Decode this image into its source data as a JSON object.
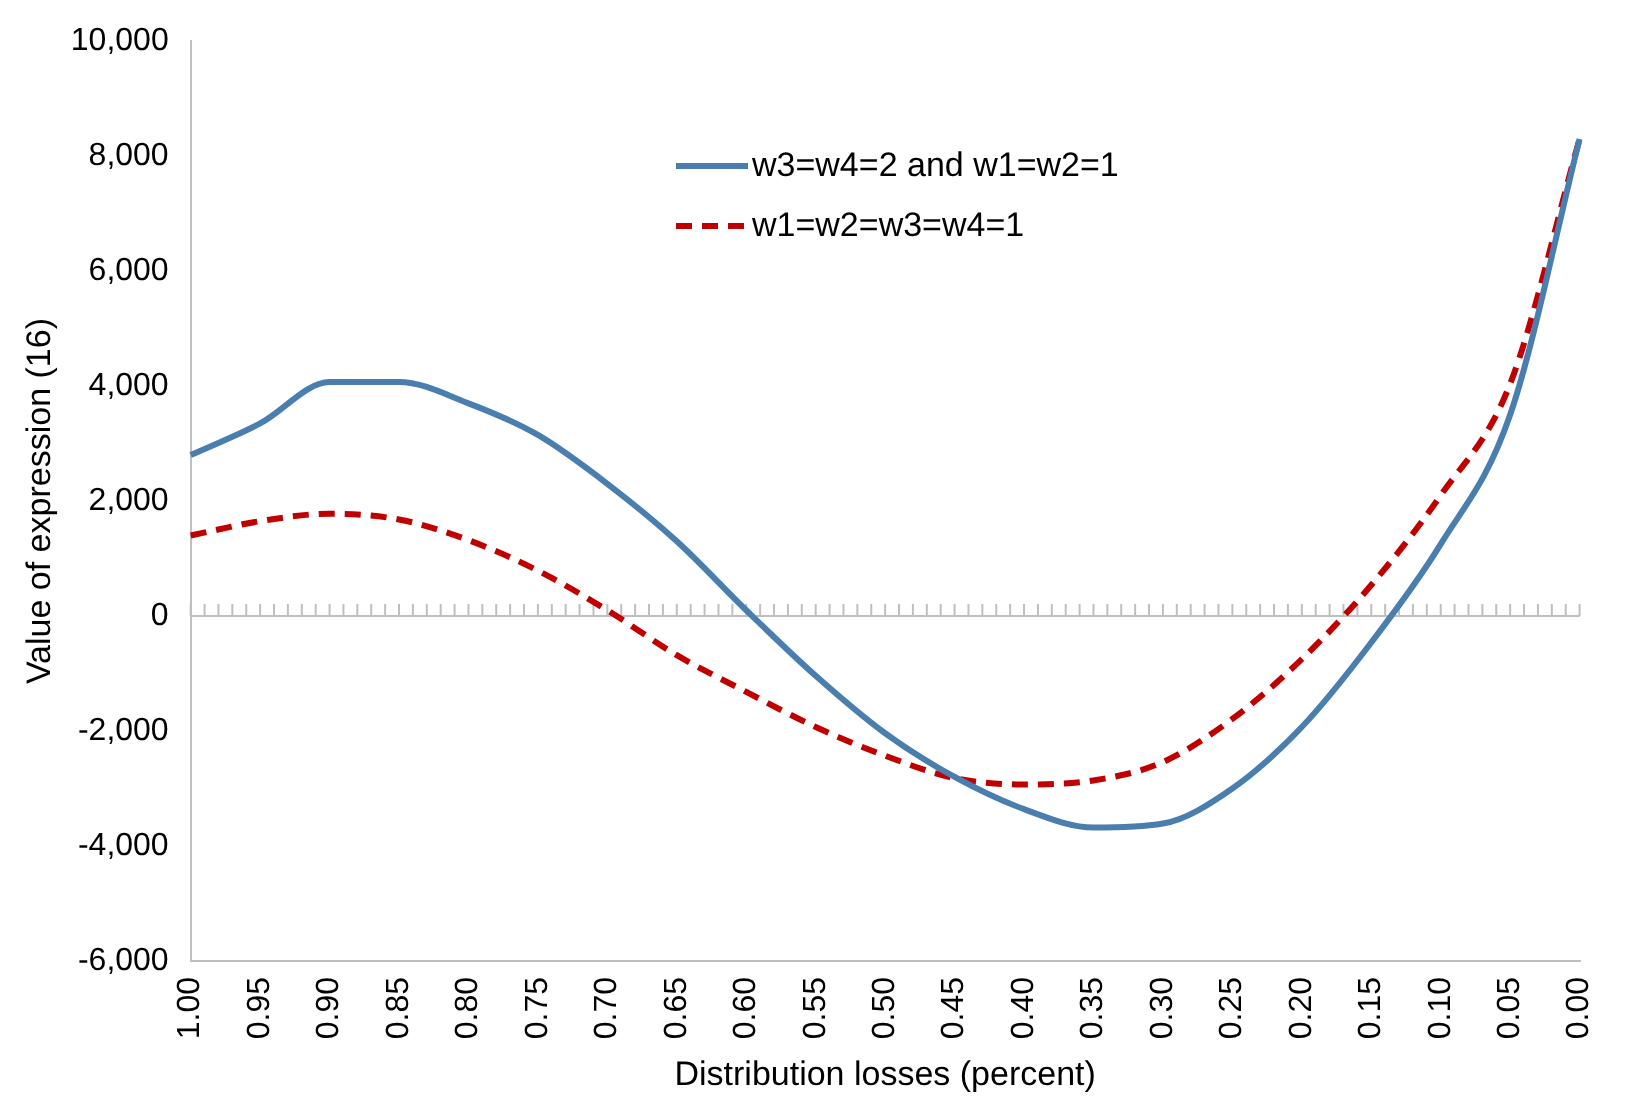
{
  "chart_data": {
    "type": "line",
    "xlabel": "Distribution losses (percent)",
    "ylabel": "Value of expression (16)",
    "categories": [
      "1.00",
      "0.95",
      "0.90",
      "0.85",
      "0.80",
      "0.75",
      "0.70",
      "0.65",
      "0.60",
      "0.55",
      "0.50",
      "0.45",
      "0.40",
      "0.35",
      "0.30",
      "0.25",
      "0.20",
      "0.15",
      "0.10",
      "0.05",
      "0.00"
    ],
    "series": [
      {
        "name": "w3=w4=2 and w1=w2=1",
        "color": "#4a7eaf",
        "line_style": "solid",
        "values": [
          2800,
          3350,
          4070,
          4070,
          3700,
          3150,
          2300,
          1300,
          100,
          -1040,
          -2040,
          -2800,
          -3360,
          -3680,
          -3610,
          -3000,
          -1930,
          -460,
          1250,
          3500,
          8300
        ]
      },
      {
        "name": "w1=w2=w3=w4=1",
        "color": "#c00000",
        "line_style": "dashed",
        "values": [
          1400,
          1650,
          1780,
          1680,
          1320,
          790,
          100,
          -680,
          -1320,
          -1930,
          -2430,
          -2820,
          -2930,
          -2860,
          -2540,
          -1790,
          -750,
          540,
          2100,
          4040,
          8300
        ]
      }
    ],
    "ylim": [
      -6000,
      10000
    ],
    "yticks": [
      {
        "value": -6000,
        "label": "-6,000"
      },
      {
        "value": -4000,
        "label": "-4,000"
      },
      {
        "value": -2000,
        "label": "-2,000"
      },
      {
        "value": 0,
        "label": "0"
      },
      {
        "value": 2000,
        "label": "2,000"
      },
      {
        "value": 4000,
        "label": "4,000"
      },
      {
        "value": 6000,
        "label": "6,000"
      },
      {
        "value": 8000,
        "label": "8,000"
      },
      {
        "value": 10000,
        "label": "10,000"
      }
    ],
    "ref_lines": [
      {
        "axis": "y",
        "value": 0,
        "color": "#bfbfbf",
        "line_style": "solid"
      }
    ],
    "grid": false,
    "legend": "top",
    "marker": "none"
  }
}
